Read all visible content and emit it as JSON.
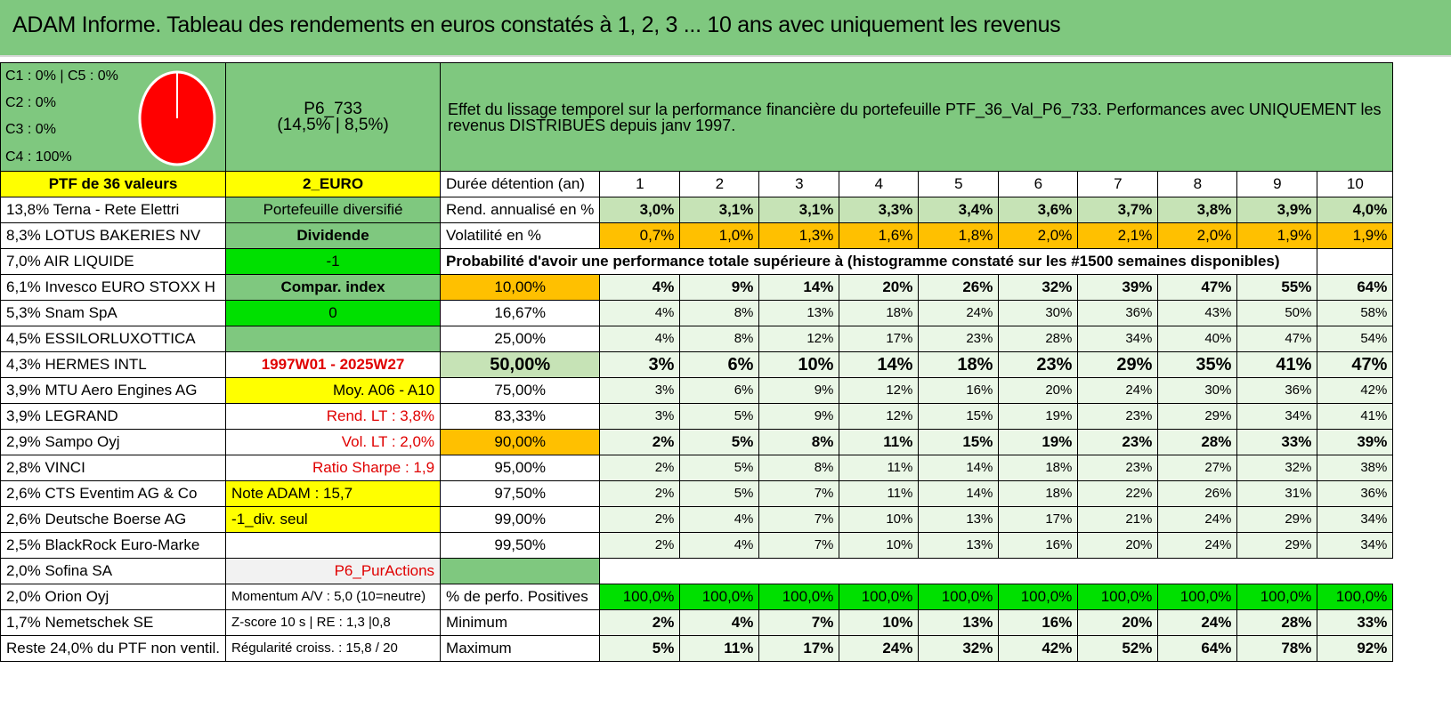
{
  "header": {
    "title": "ADAM Informe. Tableau des rendements en euros constatés à 1, 2, 3 ... 10 ans avec uniquement les revenus"
  },
  "classes": {
    "c1": "C1 : 0% | C5 : 0%",
    "c2": "C2 : 0%",
    "c3": "C3 : 0%",
    "c4": "C4 : 100%"
  },
  "pie": {
    "slices": [
      {
        "label": "C4",
        "value": 100,
        "color": "#ff0000"
      }
    ]
  },
  "portfolio": {
    "code": "P6_733",
    "stats": "(14,5% | 8,5%)"
  },
  "effect_text": "Effet du lissage temporel sur la performance financière du portefeuille PTF_36_Val_P6_733. Performances avec UNIQUEMENT les revenus DISTRIBUES depuis janv 1997.",
  "holdings": [
    "PTF de 36 valeurs",
    "13,8% Terna - Rete Elettri",
    "8,3% LOTUS BAKERIES NV",
    "7,0% AIR LIQUIDE",
    "6,1% Invesco EURO STOXX H",
    "5,3% Snam SpA",
    "4,5% ESSILORLUXOTTICA",
    "4,3% HERMES INTL",
    "3,9% MTU Aero Engines AG",
    "3,9% LEGRAND",
    "2,9% Sampo Oyj",
    "2,8% VINCI",
    "2,6% CTS Eventim AG & Co",
    "2,6% Deutsche Boerse AG",
    "2,5% BlackRock Euro-Marke",
    "2,0% Sofina SA",
    "2,0% Orion Oyj",
    "1,7% Nemetschek SE",
    "Reste 24,0% du PTF non ventil."
  ],
  "side": {
    "currency": "2_EURO",
    "diversified": "Portefeuille diversifié",
    "dividend": "Dividende",
    "minus_one": "-1",
    "compar": "Compar. index",
    "zero": "0",
    "period": "1997W01 - 2025W27",
    "moy": "Moy. A06 - A10",
    "rend_lt": "Rend. LT : 3,8%",
    "vol_lt": "Vol. LT : 2,0%",
    "sharpe": "Ratio Sharpe : 1,9",
    "note": "Note ADAM : 15,7",
    "div_seul": "-1_div. seul",
    "pur": "P6_PurActions",
    "momentum": "Momentum A/V : 5,0 (10=neutre)",
    "zscore": "Z-score 10 s | RE : 1,3 |0,8",
    "regularite": "Régularité croiss. : 15,8 / 20"
  },
  "labels": {
    "duree": "Durée détention (an)",
    "rend": "Rend. annualisé en %",
    "vol": "Volatilité en %",
    "proba": "Probabilité d'avoir une performance totale supérieure à (histogramme constaté sur les #1500 semaines disponibles)",
    "positives": "% de perfo. Positives",
    "minimum": "Minimum",
    "maximum": "Maximum"
  },
  "years": [
    "1",
    "2",
    "3",
    "4",
    "5",
    "6",
    "7",
    "8",
    "9",
    "10"
  ],
  "rend": [
    "3,0%",
    "3,1%",
    "3,1%",
    "3,3%",
    "3,4%",
    "3,6%",
    "3,7%",
    "3,8%",
    "3,9%",
    "4,0%"
  ],
  "vol": [
    "0,7%",
    "1,0%",
    "1,3%",
    "1,6%",
    "1,8%",
    "2,0%",
    "2,1%",
    "2,0%",
    "1,9%",
    "1,9%"
  ],
  "proba_rows": [
    {
      "threshold": "10,00%",
      "values": [
        "4%",
        "9%",
        "14%",
        "20%",
        "26%",
        "32%",
        "39%",
        "47%",
        "55%",
        "64%"
      ]
    },
    {
      "threshold": "16,67%",
      "values": [
        "4%",
        "8%",
        "13%",
        "18%",
        "24%",
        "30%",
        "36%",
        "43%",
        "50%",
        "58%"
      ]
    },
    {
      "threshold": "25,00%",
      "values": [
        "4%",
        "8%",
        "12%",
        "17%",
        "23%",
        "28%",
        "34%",
        "40%",
        "47%",
        "54%"
      ]
    },
    {
      "threshold": "50,00%",
      "values": [
        "3%",
        "6%",
        "10%",
        "14%",
        "18%",
        "23%",
        "29%",
        "35%",
        "41%",
        "47%"
      ]
    },
    {
      "threshold": "75,00%",
      "values": [
        "3%",
        "6%",
        "9%",
        "12%",
        "16%",
        "20%",
        "24%",
        "30%",
        "36%",
        "42%"
      ]
    },
    {
      "threshold": "83,33%",
      "values": [
        "3%",
        "5%",
        "9%",
        "12%",
        "15%",
        "19%",
        "23%",
        "29%",
        "34%",
        "41%"
      ]
    },
    {
      "threshold": "90,00%",
      "values": [
        "2%",
        "5%",
        "8%",
        "11%",
        "15%",
        "19%",
        "23%",
        "28%",
        "33%",
        "39%"
      ]
    },
    {
      "threshold": "95,00%",
      "values": [
        "2%",
        "5%",
        "8%",
        "11%",
        "14%",
        "18%",
        "23%",
        "27%",
        "32%",
        "38%"
      ]
    },
    {
      "threshold": "97,50%",
      "values": [
        "2%",
        "5%",
        "7%",
        "11%",
        "14%",
        "18%",
        "22%",
        "26%",
        "31%",
        "36%"
      ]
    },
    {
      "threshold": "99,00%",
      "values": [
        "2%",
        "4%",
        "7%",
        "10%",
        "13%",
        "17%",
        "21%",
        "24%",
        "29%",
        "34%"
      ]
    },
    {
      "threshold": "99,50%",
      "values": [
        "2%",
        "4%",
        "7%",
        "10%",
        "13%",
        "16%",
        "20%",
        "24%",
        "29%",
        "34%"
      ]
    }
  ],
  "positives": [
    "100,0%",
    "100,0%",
    "100,0%",
    "100,0%",
    "100,0%",
    "100,0%",
    "100,0%",
    "100,0%",
    "100,0%",
    "100,0%"
  ],
  "minimum": [
    "2%",
    "4%",
    "7%",
    "10%",
    "13%",
    "16%",
    "20%",
    "24%",
    "28%",
    "33%"
  ],
  "maximum": [
    "5%",
    "11%",
    "17%",
    "24%",
    "32%",
    "42%",
    "52%",
    "64%",
    "78%",
    "92%"
  ]
}
